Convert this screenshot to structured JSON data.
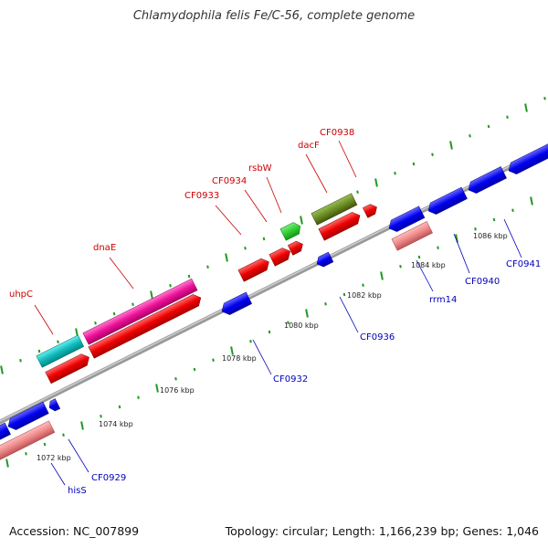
{
  "title": "Chlamydophila felis Fe/C-56, complete genome",
  "footer": {
    "accession": "Accession: NC_007899",
    "stats": "Topology: circular; Length: 1,166,239 bp; Genes: 1,046"
  },
  "scale_labels": [
    "1072 kbp",
    "1074 kbp",
    "1076 kbp",
    "1078 kbp",
    "1080 kbp",
    "1082 kbp",
    "1084 kbp",
    "1086 kbp"
  ],
  "forward_gene_labels": [
    "uhpC",
    "dnaE",
    "CF0933",
    "CF0934",
    "rsbW",
    "dacF",
    "CF0938"
  ],
  "reverse_gene_labels": [
    "hisS",
    "CF0929",
    "CF0932",
    "CF0936",
    "rrm14",
    "CF0940",
    "CF0941"
  ],
  "colors": {
    "forward_cds": "#ee0000",
    "reverse_cds": "#0000ee",
    "dnaE": "#ee1199",
    "uhpC": "#11bbbb",
    "rsbW": "#33cc33",
    "dacF": "#6b8e23",
    "rrna": "#ee8888",
    "backbone": "#888888",
    "tick": "#229922"
  }
}
